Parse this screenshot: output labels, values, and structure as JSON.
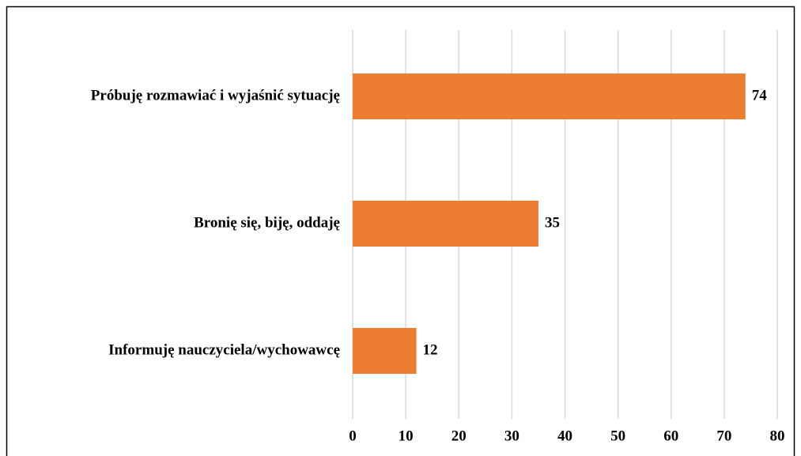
{
  "chart_data": {
    "type": "bar",
    "orientation": "horizontal",
    "categories": [
      "Próbuję rozmawiać i wyjaśnić sytuację",
      "Bronię się, biję, oddaję",
      "Informuję nauczyciela/wychowawcę"
    ],
    "values": [
      74,
      35,
      12
    ],
    "color": "#ed7d31",
    "xlim": [
      0,
      80
    ],
    "xticks": [
      0,
      10,
      20,
      30,
      40,
      50,
      60,
      70,
      80
    ],
    "grid": true
  }
}
